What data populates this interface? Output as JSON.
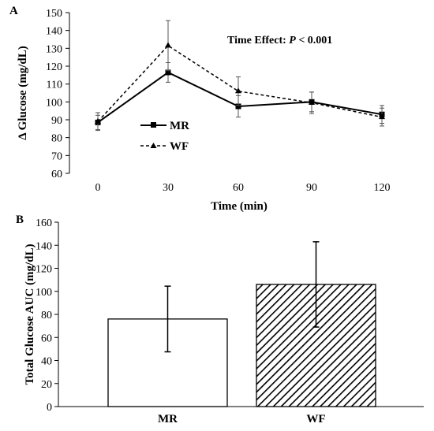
{
  "chart_data": [
    {
      "panel": "A",
      "type": "line",
      "xlabel": "Time (min)",
      "ylabel": "Δ Glucose (mg/dL)",
      "x": [
        0,
        30,
        60,
        90,
        120
      ],
      "xticks": [
        "0",
        "30",
        "60",
        "90",
        "120"
      ],
      "ylim": [
        60,
        150
      ],
      "yticks": [
        60,
        70,
        80,
        90,
        100,
        110,
        120,
        130,
        140,
        150
      ],
      "grid": false,
      "legend_position": "lower-left",
      "annotation": {
        "prefix": "Time Effect: ",
        "italic": "P",
        "suffix": " < 0.001"
      },
      "series": [
        {
          "name": "MR",
          "values": [
            88.5,
            116.5,
            97.5,
            100,
            93
          ],
          "errors": [
            4,
            5.5,
            6,
            5.5,
            5
          ],
          "line_style": "solid",
          "marker": "square",
          "color": "#000000"
        },
        {
          "name": "WF",
          "values": [
            89,
            131.5,
            106,
            99.5,
            91.5
          ],
          "errors": [
            5,
            14,
            8,
            6,
            5
          ],
          "line_style": "dashed",
          "marker": "triangle",
          "color": "#000000"
        }
      ]
    },
    {
      "panel": "B",
      "type": "bar",
      "ylabel": "Total Glucose AUC (mg/dL)",
      "categories": [
        "MR",
        "WF"
      ],
      "values": [
        76,
        106
      ],
      "errors": [
        28.5,
        37
      ],
      "ylim": [
        0,
        160
      ],
      "yticks": [
        0,
        20,
        40,
        60,
        80,
        100,
        120,
        140,
        160
      ],
      "grid": false,
      "fills": [
        "solid-white",
        "diagonal-hatch"
      ]
    }
  ]
}
